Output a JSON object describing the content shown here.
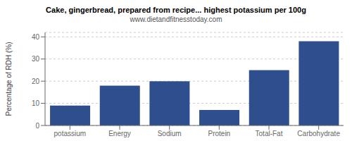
{
  "chart_data": {
    "type": "bar",
    "title": "Cake, gingerbread, prepared from recipe... highest potassium per 100g",
    "subtitle": "www.dietandfitnesstoday.com",
    "ylabel": "Percentage of RDH (%)",
    "categories": [
      "potassium",
      "Energy",
      "Sodium",
      "Protein",
      "Total-Fat",
      "Carbohydrate"
    ],
    "values": [
      9,
      18,
      20,
      7,
      25,
      38
    ],
    "color": "#2e4e8e",
    "ylim": [
      0,
      42
    ],
    "yticks": [
      0,
      10,
      20,
      30,
      40
    ],
    "grid": true
  }
}
